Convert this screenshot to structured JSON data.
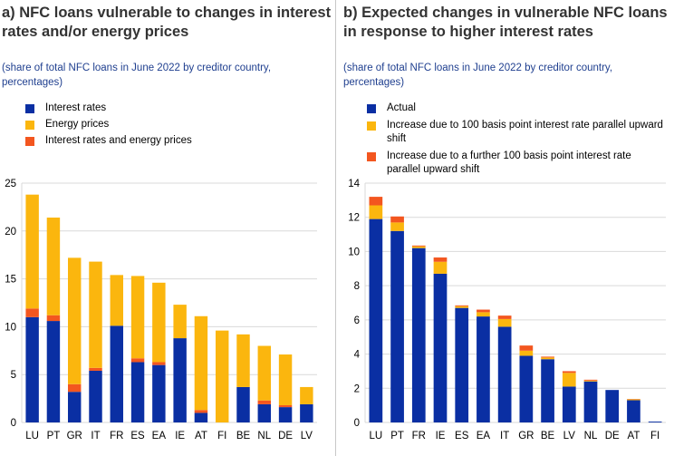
{
  "colors": {
    "blue": "#0a2fa3",
    "yellow": "#fbb60e",
    "orange": "#f3561f",
    "gridline": "#d9d9d9"
  },
  "panel_a": {
    "title": "a) NFC loans vulnerable to changes in interest rates and/or energy prices",
    "subtitle": "(share of total NFC loans in June 2022 by creditor country, percentages)",
    "legend": [
      "Interest rates",
      "Energy prices",
      "Interest rates and energy prices"
    ]
  },
  "panel_b": {
    "title": "b) Expected changes in vulnerable NFC loans in response to higher interest rates",
    "subtitle": "(share of total NFC loans in June 2022 by creditor country, percentages)",
    "legend": [
      "Actual",
      "Increase due to 100 basis point interest rate parallel upward shift",
      "Increase due to a further 100 basis point interest rate parallel upward shift"
    ]
  },
  "chart_data": [
    {
      "type": "bar",
      "stacked": true,
      "categories": [
        "LU",
        "PT",
        "GR",
        "IT",
        "FR",
        "ES",
        "EA",
        "IE",
        "AT",
        "FI",
        "BE",
        "NL",
        "DE",
        "LV"
      ],
      "ylim": [
        0,
        25
      ],
      "yticks": [
        0,
        5,
        10,
        15,
        20,
        25
      ],
      "series": [
        {
          "name": "Interest rates",
          "color": "#0a2fa3",
          "values": [
            11.0,
            10.6,
            3.2,
            5.4,
            10.1,
            6.3,
            6.0,
            8.8,
            1.0,
            0.0,
            3.7,
            1.9,
            1.6,
            1.9
          ]
        },
        {
          "name": "Interest rates and energy prices",
          "color": "#f3561f",
          "values": [
            0.9,
            0.6,
            0.8,
            0.3,
            0.0,
            0.4,
            0.3,
            0.0,
            0.3,
            0.0,
            0.0,
            0.4,
            0.2,
            0.0
          ]
        },
        {
          "name": "Energy prices",
          "color": "#fbb60e",
          "values": [
            11.9,
            10.2,
            13.2,
            11.1,
            5.3,
            8.6,
            8.3,
            3.5,
            9.8,
            9.6,
            5.5,
            5.7,
            5.3,
            1.8
          ]
        }
      ]
    },
    {
      "type": "bar",
      "stacked": true,
      "categories": [
        "LU",
        "PT",
        "FR",
        "IE",
        "ES",
        "EA",
        "IT",
        "GR",
        "BE",
        "LV",
        "NL",
        "DE",
        "AT",
        "FI"
      ],
      "ylim": [
        0,
        14
      ],
      "yticks": [
        0,
        2,
        4,
        6,
        8,
        10,
        12,
        14
      ],
      "series": [
        {
          "name": "Actual",
          "color": "#0a2fa3",
          "values": [
            11.9,
            11.2,
            10.2,
            8.7,
            6.7,
            6.2,
            5.6,
            3.9,
            3.7,
            2.1,
            2.4,
            1.9,
            1.3,
            0.05
          ]
        },
        {
          "name": "Increase due to 100 basis point interest rate parallel upward shift",
          "color": "#fbb60e",
          "values": [
            0.8,
            0.5,
            0.1,
            0.7,
            0.1,
            0.25,
            0.45,
            0.3,
            0.1,
            0.8,
            0.05,
            0.0,
            0.05,
            0.0
          ]
        },
        {
          "name": "Increase due to a further 100 basis point interest rate parallel upward shift",
          "color": "#f3561f",
          "values": [
            0.5,
            0.35,
            0.05,
            0.25,
            0.05,
            0.15,
            0.2,
            0.3,
            0.05,
            0.1,
            0.05,
            0.0,
            0.02,
            0.0
          ]
        }
      ]
    }
  ]
}
